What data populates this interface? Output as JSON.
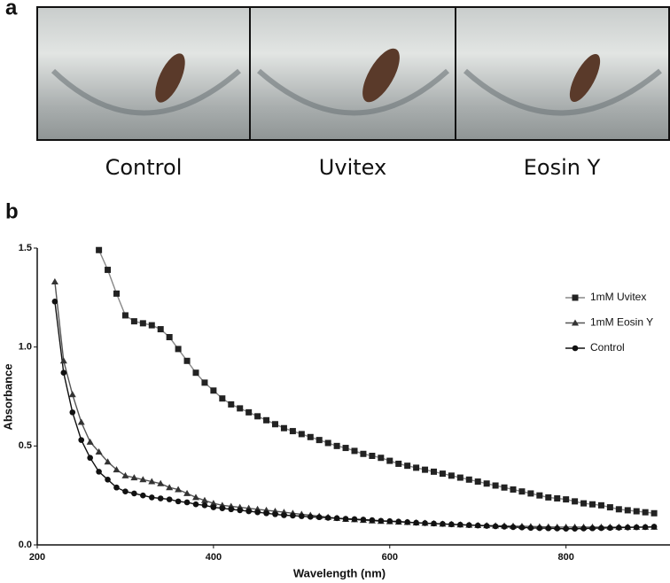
{
  "panel_a": {
    "label": "a",
    "captions": [
      "Control",
      "Uvitex",
      "Eosin Y"
    ]
  },
  "panel_b": {
    "label": "b"
  },
  "chart_data": {
    "type": "line",
    "xlabel": "Wavelength (nm)",
    "ylabel": "Absorbance",
    "x": [
      220,
      230,
      240,
      250,
      260,
      270,
      280,
      290,
      300,
      310,
      320,
      330,
      340,
      350,
      360,
      370,
      380,
      390,
      400,
      410,
      420,
      430,
      440,
      450,
      460,
      470,
      480,
      490,
      500,
      510,
      520,
      530,
      540,
      550,
      560,
      570,
      580,
      590,
      600,
      610,
      620,
      630,
      640,
      650,
      660,
      670,
      680,
      690,
      700,
      710,
      720,
      730,
      740,
      750,
      760,
      770,
      780,
      790,
      800,
      810,
      820,
      830,
      840,
      850,
      860,
      870,
      880,
      890,
      900
    ],
    "xlim": [
      200,
      918
    ],
    "xticks": [
      200,
      400,
      600,
      800
    ],
    "ylim": [
      0,
      1.5
    ],
    "yticks": [
      {
        "value": 0,
        "label": "0.0"
      },
      {
        "value": 0.5,
        "label": "0.5"
      },
      {
        "value": 1,
        "label": "1.0"
      },
      {
        "value": 1.5,
        "label": "1.5"
      }
    ],
    "legend": "right",
    "series": [
      {
        "name": "1mM Uvitex",
        "color": "#222222",
        "line_color": "#888888",
        "marker": "square",
        "values": [
          null,
          null,
          null,
          null,
          null,
          1.49,
          1.39,
          1.27,
          1.16,
          1.13,
          1.12,
          1.11,
          1.09,
          1.05,
          0.99,
          0.93,
          0.87,
          0.82,
          0.78,
          0.74,
          0.71,
          0.69,
          0.67,
          0.65,
          0.63,
          0.61,
          0.59,
          0.575,
          0.56,
          0.545,
          0.53,
          0.515,
          0.5,
          0.49,
          0.475,
          0.46,
          0.45,
          0.44,
          0.425,
          0.41,
          0.4,
          0.39,
          0.38,
          0.37,
          0.36,
          0.35,
          0.34,
          0.33,
          0.32,
          0.31,
          0.3,
          0.29,
          0.28,
          0.27,
          0.26,
          0.25,
          0.24,
          0.235,
          0.23,
          0.22,
          0.21,
          0.205,
          0.2,
          0.19,
          0.18,
          0.175,
          0.17,
          0.165,
          0.16
        ]
      },
      {
        "name": "1mM Eosin Y",
        "color": "#333333",
        "line_color": "#555555",
        "marker": "triangle",
        "values": [
          1.33,
          0.93,
          0.76,
          0.62,
          0.52,
          0.47,
          0.42,
          0.38,
          0.35,
          0.34,
          0.33,
          0.32,
          0.31,
          0.29,
          0.28,
          0.26,
          0.24,
          0.225,
          0.21,
          0.2,
          0.195,
          0.19,
          0.185,
          0.18,
          0.175,
          0.17,
          0.165,
          0.16,
          0.155,
          0.15,
          0.145,
          0.14,
          0.135,
          0.13,
          0.128,
          0.125,
          0.122,
          0.12,
          0.118,
          0.116,
          0.114,
          0.112,
          0.11,
          0.108,
          0.106,
          0.104,
          0.102,
          0.1,
          0.099,
          0.098,
          0.097,
          0.096,
          0.095,
          0.094,
          0.093,
          0.092,
          0.091,
          0.09,
          0.09,
          0.09,
          0.09,
          0.09,
          0.09,
          0.09,
          0.09,
          0.09,
          0.09,
          0.09,
          0.09
        ]
      },
      {
        "name": "Control",
        "color": "#111111",
        "line_color": "#111111",
        "marker": "circle",
        "values": [
          1.23,
          0.87,
          0.67,
          0.53,
          0.44,
          0.37,
          0.33,
          0.29,
          0.27,
          0.26,
          0.25,
          0.24,
          0.235,
          0.23,
          0.22,
          0.215,
          0.205,
          0.2,
          0.19,
          0.185,
          0.18,
          0.175,
          0.17,
          0.165,
          0.16,
          0.155,
          0.15,
          0.148,
          0.145,
          0.142,
          0.14,
          0.137,
          0.135,
          0.132,
          0.13,
          0.128,
          0.125,
          0.122,
          0.12,
          0.118,
          0.115,
          0.112,
          0.11,
          0.108,
          0.106,
          0.104,
          0.102,
          0.1,
          0.098,
          0.096,
          0.094,
          0.092,
          0.09,
          0.088,
          0.086,
          0.085,
          0.084,
          0.083,
          0.082,
          0.082,
          0.083,
          0.084,
          0.085,
          0.086,
          0.087,
          0.088,
          0.089,
          0.09,
          0.092
        ]
      }
    ]
  }
}
